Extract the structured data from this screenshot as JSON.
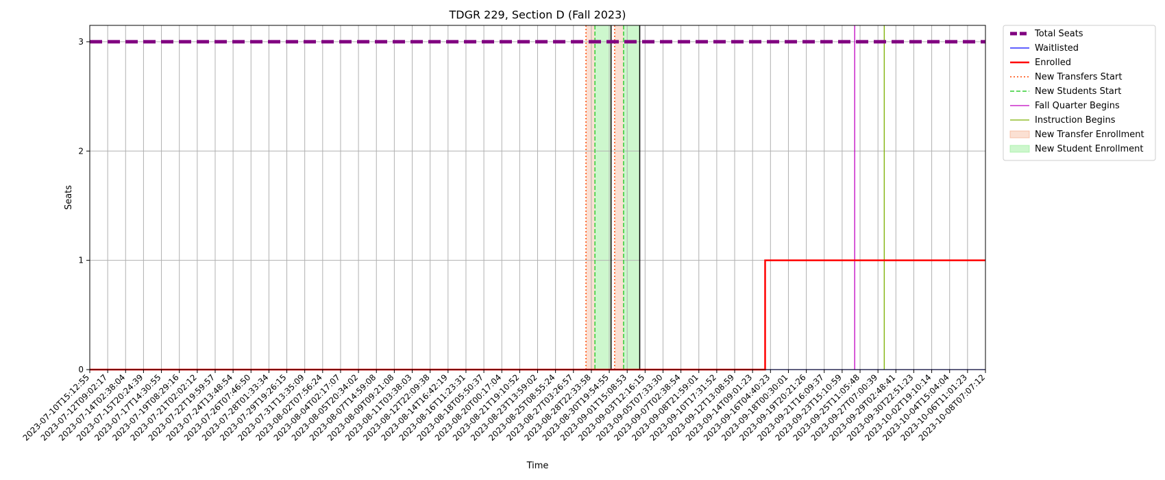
{
  "chart_data": {
    "type": "line",
    "title": "TDGR 229, Section D (Fall 2023)",
    "xlabel": "Time",
    "ylabel": "Seats",
    "ylim": [
      0,
      3.15
    ],
    "y_ticks": [
      0,
      1,
      2,
      3
    ],
    "grid": true,
    "legend_position": "outside-top-right",
    "x_ticks": [
      "2023-07-10T15:12:55",
      "2023-07-12T09:02:17",
      "2023-07-14T02:38:04",
      "2023-07-15T20:24:39",
      "2023-07-17T14:30:55",
      "2023-07-19T08:29:16",
      "2023-07-21T02:02:12",
      "2023-07-22T19:59:57",
      "2023-07-24T13:48:54",
      "2023-07-26T07:46:50",
      "2023-07-28T01:33:34",
      "2023-07-29T19:26:15",
      "2023-07-31T13:35:09",
      "2023-08-02T07:56:24",
      "2023-08-04T02:17:07",
      "2023-08-05T20:34:02",
      "2023-08-07T14:59:08",
      "2023-08-09T09:21:08",
      "2023-08-11T03:38:03",
      "2023-08-12T22:09:38",
      "2023-08-14T16:42:19",
      "2023-08-16T11:23:31",
      "2023-08-18T05:50:37",
      "2023-08-20T00:17:04",
      "2023-08-21T19:10:52",
      "2023-08-23T13:59:02",
      "2023-08-25T08:55:24",
      "2023-08-27T03:26:57",
      "2023-08-28T22:33:58",
      "2023-08-30T19:54:55",
      "2023-09-01T15:08:53",
      "2023-09-03T12:16:15",
      "2023-09-05T07:33:30",
      "2023-09-07T02:38:54",
      "2023-09-08T21:59:01",
      "2023-09-10T17:31:52",
      "2023-09-12T13:08:59",
      "2023-09-14T09:01:23",
      "2023-09-16T04:40:23",
      "2023-09-18T00:30:01",
      "2023-09-19T20:21:26",
      "2023-09-21T16:09:37",
      "2023-09-23T15:10:59",
      "2023-09-25T11:05:48",
      "2023-09-27T07:00:39",
      "2023-09-29T02:48:41",
      "2023-09-30T22:51:23",
      "2023-10-02T19:10:14",
      "2023-10-04T15:04:04",
      "2023-10-06T11:01:23",
      "2023-10-08T07:07:12"
    ],
    "series": [
      {
        "name": "Total Seats",
        "color": "#800080",
        "style": "dashed-thick",
        "points": [
          [
            0,
            3
          ],
          [
            50,
            3
          ]
        ]
      },
      {
        "name": "Waitlisted",
        "color": "#0000ff",
        "style": "solid",
        "points": [
          [
            0,
            0
          ],
          [
            50,
            0
          ]
        ]
      },
      {
        "name": "Enrolled",
        "color": "#ff0000",
        "style": "solid-thick",
        "points": [
          [
            0,
            0
          ],
          [
            37.7,
            0
          ],
          [
            37.7,
            1
          ],
          [
            50,
            1
          ]
        ]
      }
    ],
    "vertical_markers": [
      {
        "name": "New Transfers Start",
        "color": "#ff4500",
        "style": "dotted",
        "x": [
          27.7,
          29.3
        ]
      },
      {
        "name": "New Students Start",
        "color": "#32cd32",
        "style": "dashed",
        "x": [
          28.2,
          29.8
        ]
      },
      {
        "name": "Fall Quarter Begins",
        "color": "#c000c0",
        "style": "solid",
        "x": [
          42.7
        ]
      },
      {
        "name": "Instruction Begins",
        "color": "#7cb000",
        "style": "solid",
        "x": [
          44.35
        ]
      }
    ],
    "period_bands": [
      {
        "name": "New Transfer Enrollment",
        "color": "#f4a582",
        "opacity": 0.35,
        "ranges": [
          [
            27.7,
            28.2
          ],
          [
            29.3,
            29.8
          ]
        ]
      },
      {
        "name": "New Student Enrollment",
        "color": "#90ee90",
        "opacity": 0.45,
        "ranges": [
          [
            28.2,
            29.1
          ],
          [
            29.8,
            30.7
          ]
        ]
      }
    ],
    "boundary_lines": {
      "color": "#000000",
      "x": [
        29.1,
        30.7
      ]
    }
  }
}
